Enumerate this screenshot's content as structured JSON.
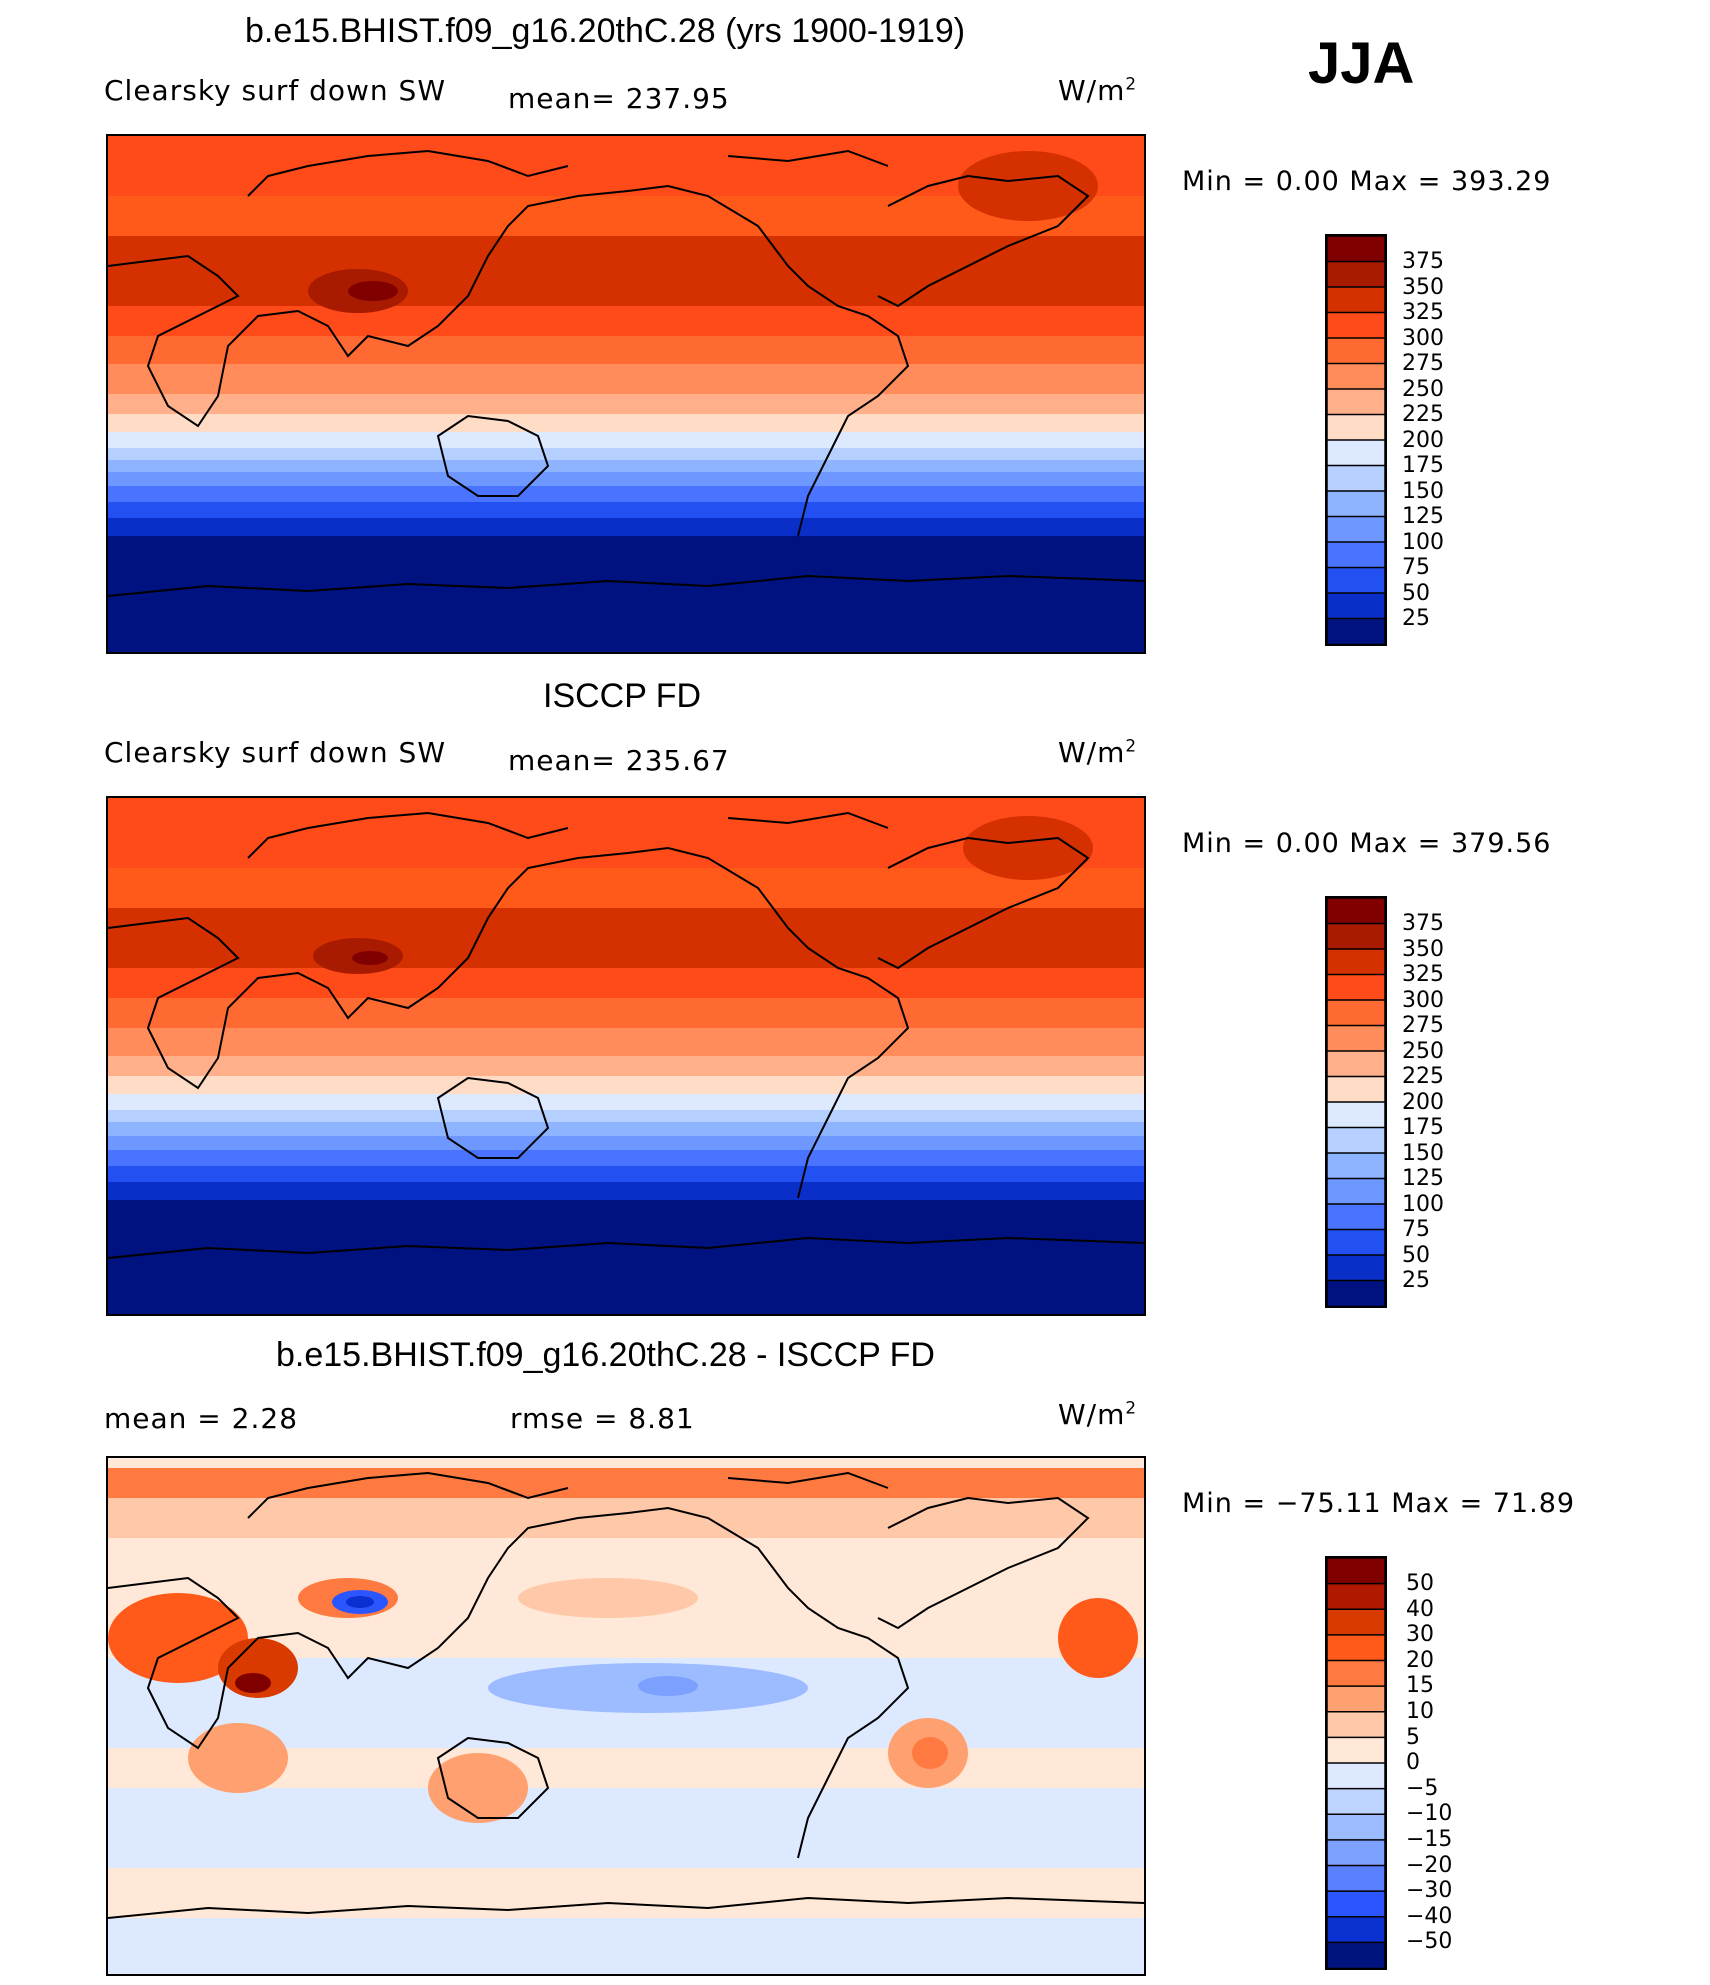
{
  "season": "JJA",
  "panels": [
    {
      "title": "b.e15.BHIST.f09_g16.20thC.28 (yrs 1900-1919)",
      "left_label": "Clearsky  surf  down  SW",
      "mid_label": "mean=  237.95",
      "units": "W/m",
      "units_sup": "2",
      "minmax": "Min  =      0.00  Max  =  393.29",
      "colorbar_labels": [
        "375",
        "350",
        "325",
        "300",
        "275",
        "250",
        "225",
        "200",
        "175",
        "150",
        "125",
        "100",
        "75",
        "50",
        "25"
      ]
    },
    {
      "title": "ISCCP FD",
      "left_label": "Clearsky  surf  down  SW",
      "mid_label": "mean=  235.67",
      "units": "W/m",
      "units_sup": "2",
      "minmax": "Min  =      0.00  Max  =  379.56",
      "colorbar_labels": [
        "375",
        "350",
        "325",
        "300",
        "275",
        "250",
        "225",
        "200",
        "175",
        "150",
        "125",
        "100",
        "75",
        "50",
        "25"
      ]
    },
    {
      "title": "b.e15.BHIST.f09_g16.20thC.28 - ISCCP FD",
      "left_label": "mean  =     2.28",
      "mid_label": "rmse  =     8.81",
      "units": "W/m",
      "units_sup": "2",
      "minmax": "Min  =  −75.11  Max  =    71.89",
      "colorbar_labels": [
        "50",
        "40",
        "30",
        "20",
        "15",
        "10",
        "5",
        "0",
        "−5",
        "−10",
        "−15",
        "−20",
        "−30",
        "−40",
        "−50"
      ]
    }
  ],
  "colors": {
    "abs_scale": [
      "#800000",
      "#a91b00",
      "#d43000",
      "#ff4a1a",
      "#ff6a33",
      "#ff8c5a",
      "#ffb08a",
      "#ffdcc6",
      "#dce9ff",
      "#b5d0ff",
      "#8fb4ff",
      "#6e98ff",
      "#4a74ff",
      "#2350f0",
      "#0a2fc8",
      "#001280"
    ],
    "diff_scale": [
      "#800000",
      "#b01800",
      "#d83a00",
      "#ff5a1a",
      "#ff7a40",
      "#ffa070",
      "#ffc8a8",
      "#ffe8d8",
      "#dce9ff",
      "#bcd4ff",
      "#9cbcff",
      "#7ca0ff",
      "#5a7fff",
      "#2a55ff",
      "#0a30d0",
      "#001480"
    ]
  }
}
